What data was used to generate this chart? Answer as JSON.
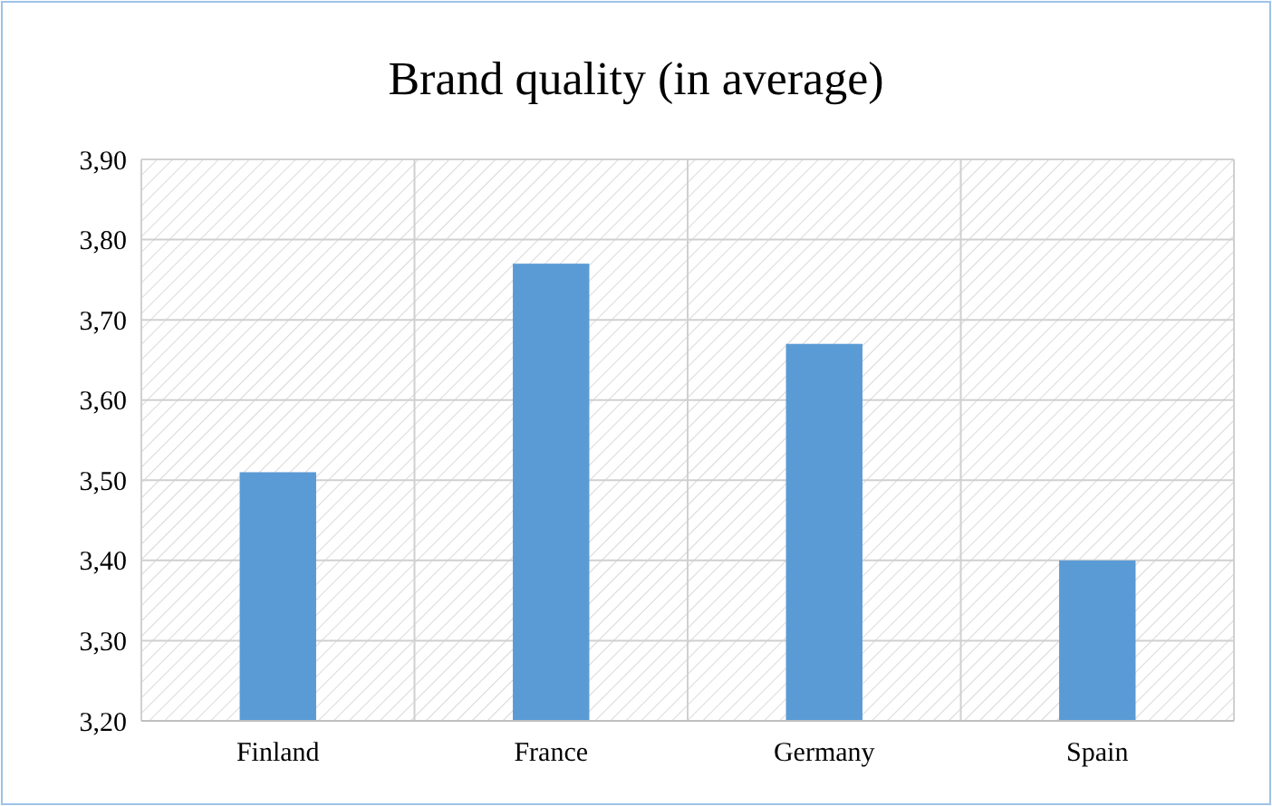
{
  "chart_data": {
    "type": "bar",
    "title": "Brand quality (in average)",
    "categories": [
      "Finland",
      "France",
      "Germany",
      "Spain"
    ],
    "values": [
      3.51,
      3.77,
      3.67,
      3.4
    ],
    "color": "#5b9bd5",
    "ylim": [
      3.2,
      3.9
    ],
    "yticks": [
      {
        "value": 3.2,
        "label": "3,20"
      },
      {
        "value": 3.3,
        "label": "3,30"
      },
      {
        "value": 3.4,
        "label": "3,40"
      },
      {
        "value": 3.5,
        "label": "3,50"
      },
      {
        "value": 3.6,
        "label": "3,60"
      },
      {
        "value": 3.7,
        "label": "3,70"
      },
      {
        "value": 3.8,
        "label": "3,80"
      },
      {
        "value": 3.9,
        "label": "3,90"
      }
    ],
    "grid": true
  }
}
